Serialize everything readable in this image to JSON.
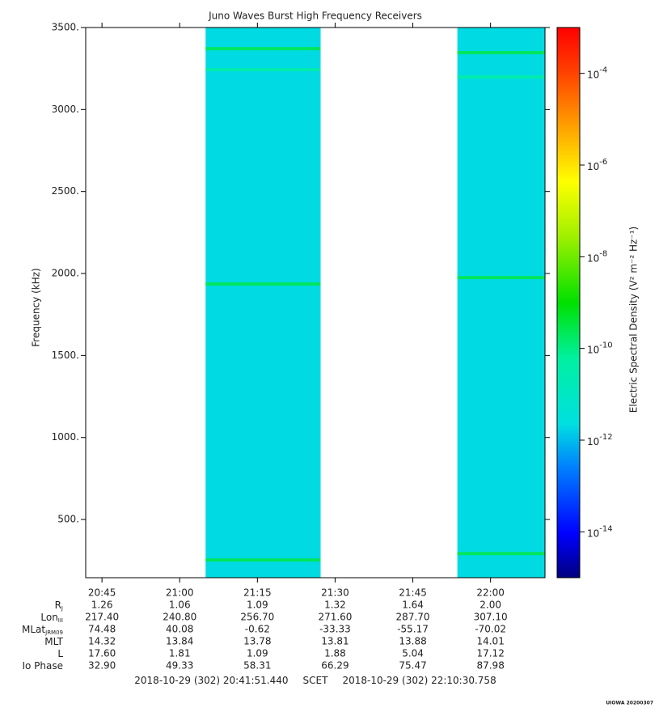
{
  "chart_data": {
    "type": "spectrogram",
    "title": "Juno Waves Burst High Frequency Receivers",
    "ylabel": "Frequency (kHz)",
    "ylim": [
      145,
      3500
    ],
    "yticks": [
      {
        "value": 500,
        "label": "500."
      },
      {
        "value": 1000,
        "label": "1000."
      },
      {
        "value": 1500,
        "label": "1500."
      },
      {
        "value": 2000,
        "label": "2000."
      },
      {
        "value": 2500,
        "label": "2500."
      },
      {
        "value": 3000,
        "label": "3000."
      },
      {
        "value": 3500,
        "label": "3500."
      }
    ],
    "xlim": [
      1241.86,
      1330.51
    ],
    "xticks": [
      {
        "value": 1245,
        "label": "20:45"
      },
      {
        "value": 1260,
        "label": "21:00"
      },
      {
        "value": 1275,
        "label": "21:15"
      },
      {
        "value": 1290,
        "label": "21:30"
      },
      {
        "value": 1305,
        "label": "21:45"
      },
      {
        "value": 1320,
        "label": "22:00"
      }
    ],
    "zlabel": "Electric Spectral Density (V² m⁻² Hz⁻¹)",
    "zscale": "log",
    "zlim": [
      1e-15,
      0.001
    ],
    "zticks": [
      {
        "value": 0.0001,
        "label": "10",
        "exponent": "-4"
      },
      {
        "value": 1e-06,
        "label": "10",
        "exponent": "-6"
      },
      {
        "value": 1e-08,
        "label": "10",
        "exponent": "-8"
      },
      {
        "value": 1e-10,
        "label": "10",
        "exponent": "-10"
      },
      {
        "value": 1e-12,
        "label": "10",
        "exponent": "-12"
      },
      {
        "value": 1e-14,
        "label": "10",
        "exponent": "-14"
      }
    ],
    "segments": [
      {
        "start": 1265,
        "end": 1287.2,
        "level": 2e-12,
        "lines": [
          {
            "freq": 3371,
            "level": 3e-10
          },
          {
            "freq": 3243,
            "level": 5e-11
          },
          {
            "freq": 1936,
            "level": 3e-10
          },
          {
            "freq": 253,
            "level": 3e-10
          }
        ]
      },
      {
        "start": 1313.6,
        "end": 1330.51,
        "level": 2e-12,
        "lines": [
          {
            "freq": 3347,
            "level": 3e-10
          },
          {
            "freq": 3198,
            "level": 5e-11
          },
          {
            "freq": 1975,
            "level": 3e-10
          },
          {
            "freq": 292,
            "level": 3e-10
          }
        ]
      }
    ],
    "ephemeris": [
      {
        "label": "R",
        "sub": "J",
        "values": [
          "1.26",
          "1.06",
          "1.09",
          "1.32",
          "1.64",
          "2.00"
        ]
      },
      {
        "label": "Lon",
        "sub": "III",
        "values": [
          "217.40",
          "240.80",
          "256.70",
          "271.60",
          "287.70",
          "307.10"
        ]
      },
      {
        "label": "MLat",
        "sub": "JRM09",
        "values": [
          "74.48",
          "40.08",
          "-0.62",
          "-33.33",
          "-55.17",
          "-70.02"
        ]
      },
      {
        "label": "MLT",
        "values": [
          "14.32",
          "13.84",
          "13.78",
          "13.81",
          "13.88",
          "14.01"
        ]
      },
      {
        "label": "L",
        "values": [
          "17.60",
          "1.81",
          "1.09",
          "1.88",
          "5.04",
          "17.12"
        ]
      },
      {
        "label": "Io Phase",
        "values": [
          "32.90",
          "49.33",
          "58.31",
          "66.29",
          "75.47",
          "87.98"
        ]
      }
    ],
    "footer": {
      "start": "2018-10-29 (302) 20:41:51.440",
      "separator": "SCET",
      "end": "2018-10-29 (302) 22:10:30.758"
    },
    "credit": "UIOWA 20200307"
  }
}
